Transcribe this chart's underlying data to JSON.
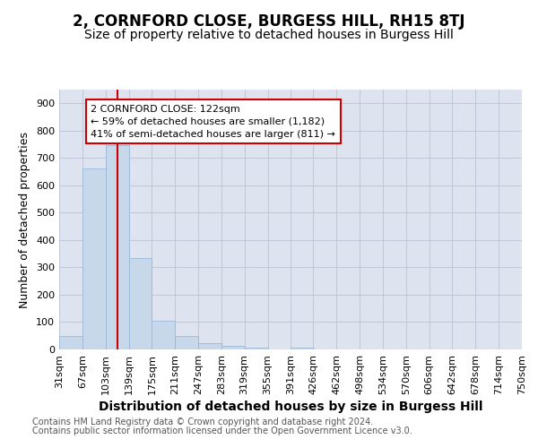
{
  "title": "2, CORNFORD CLOSE, BURGESS HILL, RH15 8TJ",
  "subtitle": "Size of property relative to detached houses in Burgess Hill",
  "xlabel": "Distribution of detached houses by size in Burgess Hill",
  "ylabel": "Number of detached properties",
  "footnote1": "Contains HM Land Registry data © Crown copyright and database right 2024.",
  "footnote2": "Contains public sector information licensed under the Open Government Licence v3.0.",
  "bar_color": "#c8d8eb",
  "bar_edge_color": "#9ab8d8",
  "vline_color": "#cc0000",
  "vline_x": 122,
  "annotation_line1": "2 CORNFORD CLOSE: 122sqm",
  "annotation_line2": "← 59% of detached houses are smaller (1,182)",
  "annotation_line3": "41% of semi-detached houses are larger (811) →",
  "annotation_box_color": "#cc0000",
  "bins": [
    31,
    67,
    103,
    139,
    175,
    211,
    247,
    283,
    319,
    355,
    391,
    426,
    462,
    498,
    534,
    570,
    606,
    642,
    678,
    714,
    750
  ],
  "values": [
    50,
    663,
    748,
    335,
    105,
    50,
    22,
    13,
    8,
    0,
    5,
    0,
    0,
    0,
    0,
    0,
    0,
    0,
    0,
    0
  ],
  "ylim": [
    0,
    950
  ],
  "yticks": [
    0,
    100,
    200,
    300,
    400,
    500,
    600,
    700,
    800,
    900
  ],
  "grid_color": "#c0c8d8",
  "bg_color": "#dde4f0",
  "title_fontsize": 12,
  "subtitle_fontsize": 10,
  "axis_label_fontsize": 9,
  "tick_fontsize": 8,
  "footnote_fontsize": 7
}
